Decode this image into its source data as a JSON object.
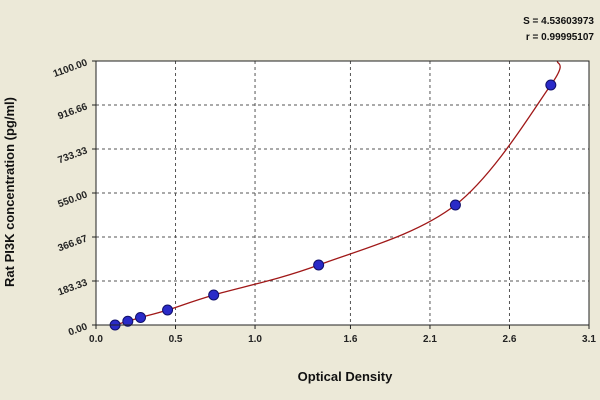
{
  "chart_data": {
    "type": "scatter",
    "title": "",
    "xlabel": "Optical Density",
    "ylabel": "Rat PI3K concentration (pg/ml)",
    "xlim": [
      0.0,
      3.1
    ],
    "ylim": [
      0.0,
      1100.0
    ],
    "x_ticks": [
      0.0,
      0.5,
      1.0,
      1.6,
      2.1,
      2.6,
      3.1
    ],
    "x_tick_labels": [
      "0.0",
      "0.5",
      "1.0",
      "1.6",
      "2.1",
      "2.6",
      "3.1"
    ],
    "y_ticks": [
      0.0,
      183.33,
      366.67,
      550.0,
      733.33,
      916.66,
      1100.0
    ],
    "y_tick_labels": [
      "0.00",
      "183.33",
      "366.67",
      "550.00",
      "733.33",
      "916.66",
      "1100.00"
    ],
    "grid": true,
    "stats": {
      "s_text": "S = 4.53603973",
      "r_text": "r = 0.99995107"
    },
    "colors": {
      "point": "#2a2ac8",
      "curve": "#a01818",
      "grid": "#555555",
      "plot_bg": "#ffffff",
      "page_bg": "#ece9d8"
    },
    "series": [
      {
        "points": [
          {
            "x": 0.12,
            "y": 0
          },
          {
            "x": 0.2,
            "y": 15.6
          },
          {
            "x": 0.28,
            "y": 31.25
          },
          {
            "x": 0.45,
            "y": 62.5
          },
          {
            "x": 0.74,
            "y": 125
          },
          {
            "x": 1.4,
            "y": 250
          },
          {
            "x": 2.26,
            "y": 500
          },
          {
            "x": 2.86,
            "y": 1000
          }
        ]
      }
    ]
  }
}
